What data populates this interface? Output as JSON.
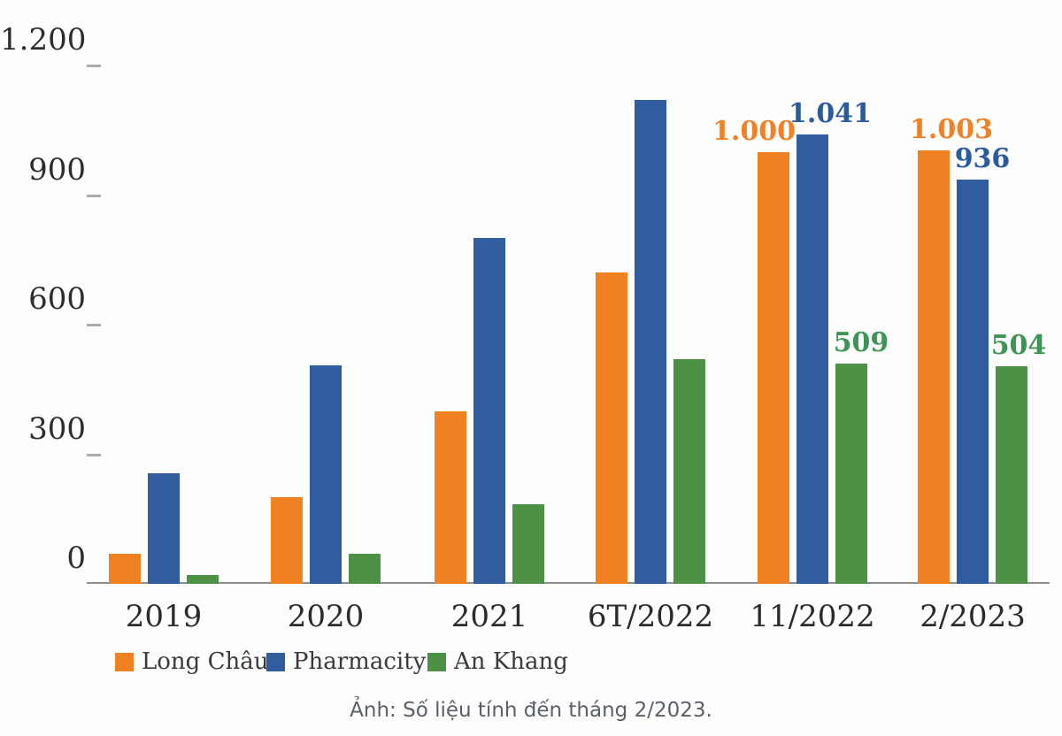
{
  "chart_data": {
    "type": "bar",
    "title": "",
    "categories": [
      "2019",
      "2020",
      "2021",
      "6T/2022",
      "11/2022",
      "2/2023"
    ],
    "series": [
      {
        "name": "Long Châu",
        "color": "#EF8122",
        "label_color": "#F08125",
        "values": [
          70,
          200,
          400,
          720,
          1000,
          1003
        ],
        "value_labels": [
          "",
          "",
          "",
          "",
          "1.000",
          "1.003"
        ]
      },
      {
        "name": "Pharmacity",
        "color": "#2F5D9E",
        "label_color": "#2A5C9D",
        "values": [
          255,
          505,
          800,
          1120,
          1041,
          936
        ],
        "value_labels": [
          "",
          "",
          "",
          "",
          "1.041",
          "936"
        ]
      },
      {
        "name": "An Khang",
        "color": "#4D9147",
        "label_color": "#3E9355",
        "values": [
          20,
          70,
          185,
          520,
          509,
          504
        ],
        "value_labels": [
          "",
          "",
          "",
          "",
          "509",
          "504"
        ]
      }
    ],
    "ylim": [
      0,
      1200
    ],
    "yticks": [
      0,
      300,
      600,
      900,
      1200
    ],
    "ytick_labels": [
      "0",
      "300",
      "600",
      "900",
      "1.200"
    ],
    "xlabel": "",
    "ylabel": "",
    "grid": false,
    "legend_position": "bottom"
  },
  "caption": "Ảnh: Số liệu tính đến tháng 2/2023."
}
